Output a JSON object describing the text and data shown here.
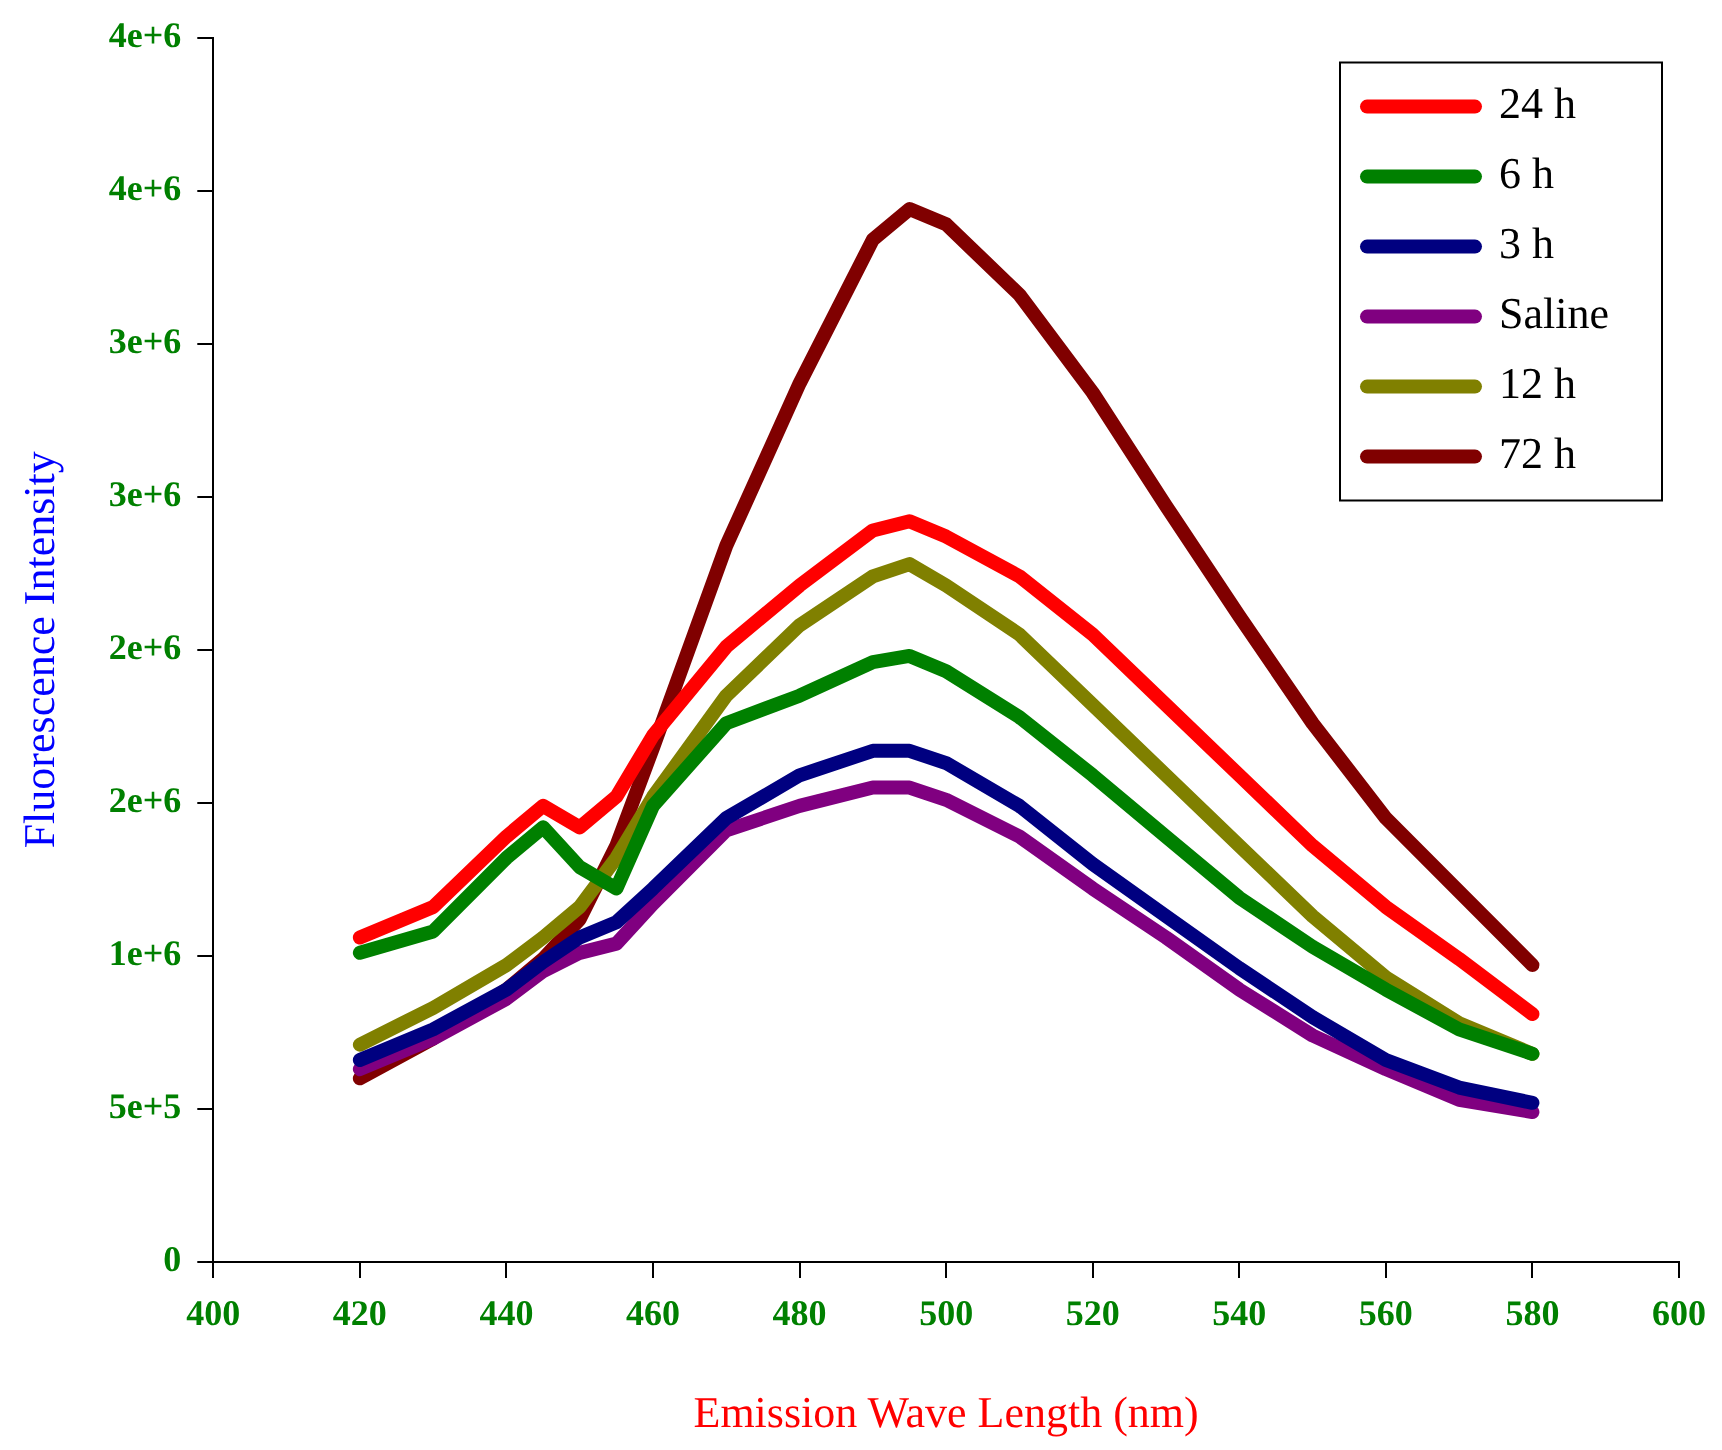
{
  "chart_data": {
    "type": "line",
    "xlabel": "Emission Wave Length (nm)",
    "ylabel": "Fluorescence Intensity",
    "x": [
      420,
      430,
      440,
      445,
      450,
      455,
      460,
      470,
      480,
      490,
      495,
      500,
      510,
      520,
      530,
      540,
      550,
      560,
      570,
      580
    ],
    "series": [
      {
        "name": "24 h",
        "color": "#ff0000",
        "values": [
          1060000,
          1160000,
          1390000,
          1490000,
          1420000,
          1520000,
          1720000,
          2010000,
          2210000,
          2390000,
          2420000,
          2370000,
          2240000,
          2050000,
          1820000,
          1590000,
          1360000,
          1160000,
          990000,
          810000
        ]
      },
      {
        "name": "6 h",
        "color": "#008000",
        "values": [
          1010000,
          1080000,
          1320000,
          1420000,
          1290000,
          1220000,
          1490000,
          1760000,
          1850000,
          1960000,
          1980000,
          1930000,
          1780000,
          1590000,
          1390000,
          1190000,
          1030000,
          890000,
          760000,
          680000
        ]
      },
      {
        "name": "3 h",
        "color": "#000080",
        "values": [
          660000,
          760000,
          890000,
          980000,
          1060000,
          1110000,
          1220000,
          1450000,
          1590000,
          1670000,
          1670000,
          1630000,
          1490000,
          1300000,
          1130000,
          960000,
          800000,
          660000,
          570000,
          520000
        ]
      },
      {
        "name": "Saline",
        "color": "#800080",
        "values": [
          630000,
          730000,
          860000,
          950000,
          1010000,
          1040000,
          1170000,
          1410000,
          1490000,
          1550000,
          1550000,
          1510000,
          1390000,
          1220000,
          1060000,
          890000,
          740000,
          630000,
          530000,
          490000
        ]
      },
      {
        "name": "12 h",
        "color": "#808000",
        "values": [
          710000,
          830000,
          970000,
          1060000,
          1160000,
          1320000,
          1520000,
          1850000,
          2080000,
          2240000,
          2280000,
          2210000,
          2050000,
          1820000,
          1590000,
          1360000,
          1130000,
          930000,
          780000,
          680000
        ]
      },
      {
        "name": "72 h",
        "color": "#800000",
        "values": [
          600000,
          730000,
          890000,
          990000,
          1120000,
          1360000,
          1680000,
          2340000,
          2870000,
          3340000,
          3440000,
          3390000,
          3160000,
          2840000,
          2470000,
          2110000,
          1760000,
          1450000,
          1210000,
          970000
        ]
      }
    ],
    "xlim": [
      400,
      600
    ],
    "xticks": [
      400,
      420,
      440,
      460,
      480,
      500,
      520,
      540,
      560,
      580,
      600
    ],
    "ylim": [
      0,
      4000000
    ],
    "yticks": [
      0,
      {
        "value": 500000,
        "label": "5e+5"
      },
      {
        "value": 1000000,
        "label": "1e+6"
      },
      {
        "value": 1500000,
        "label": "2e+6"
      },
      {
        "value": 2000000,
        "label": "2e+6"
      },
      {
        "value": 2500000,
        "label": "3e+6"
      },
      {
        "value": 3000000,
        "label": "3e+6"
      },
      {
        "value": 3500000,
        "label": "4e+6"
      },
      {
        "value": 4000000,
        "label": "4e+6"
      }
    ],
    "grid": false,
    "legend": "top right",
    "marker": "none",
    "line_style": "solid"
  }
}
